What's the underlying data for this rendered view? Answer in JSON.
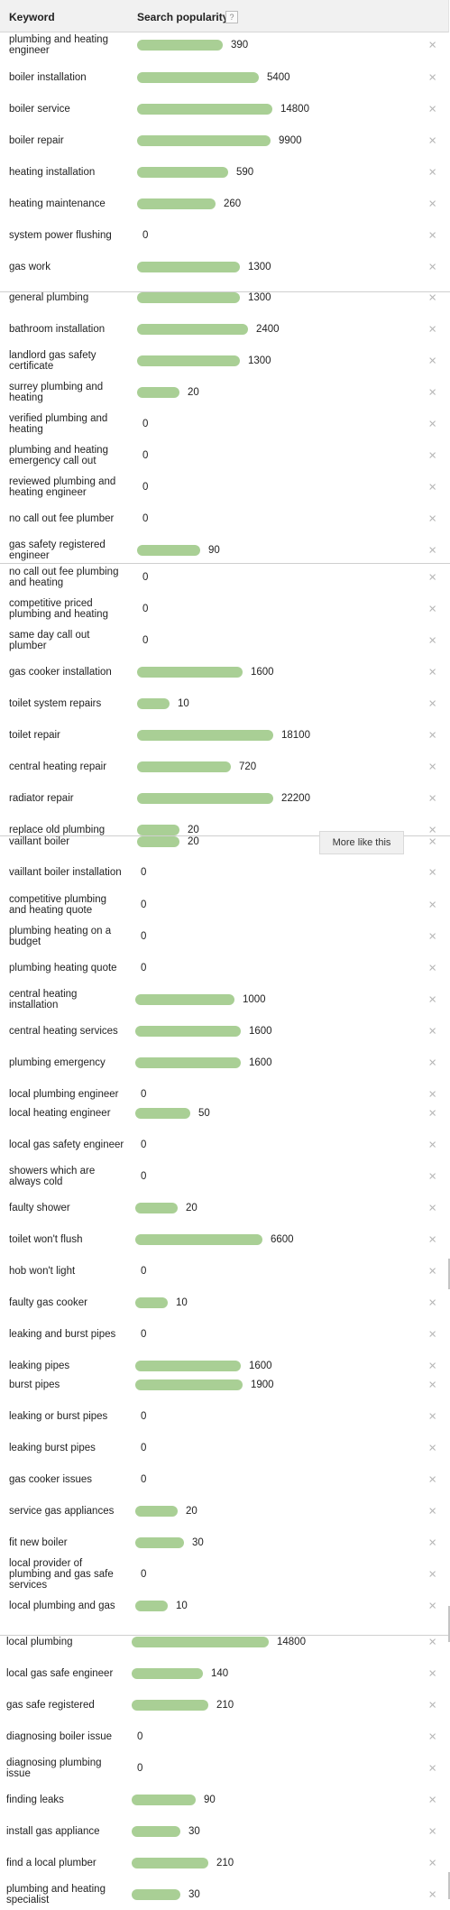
{
  "header": {
    "keyword_label": "Keyword",
    "popularity_label": "Search popularity",
    "help_icon": "?"
  },
  "more_like_this": "More like this",
  "remove_icon": "×",
  "bar_color": "#a9cf95",
  "rows": [
    {
      "kw": "plumbing and heating engineer",
      "value": "390"
    },
    {
      "kw": "boiler installation",
      "value": "5400"
    },
    {
      "kw": "boiler service",
      "value": "14800"
    },
    {
      "kw": "boiler repair",
      "value": "9900"
    },
    {
      "kw": "heating installation",
      "value": "590"
    },
    {
      "kw": "heating maintenance",
      "value": "260"
    },
    {
      "kw": "system power flushing",
      "value": "0"
    },
    {
      "kw": "gas work",
      "value": "1300"
    },
    {
      "kw": "general plumbing",
      "value": "1300"
    },
    {
      "kw": "bathroom installation",
      "value": "2400"
    },
    {
      "kw": "landlord gas safety certificate",
      "value": "1300"
    },
    {
      "kw": "surrey plumbing and heating",
      "value": "20"
    },
    {
      "kw": "verified plumbing and heating",
      "value": "0"
    },
    {
      "kw": "plumbing and heating emergency call out",
      "value": "0"
    },
    {
      "kw": "reviewed plumbing and heating engineer",
      "value": "0"
    },
    {
      "kw": "no call out fee plumber",
      "value": "0"
    },
    {
      "kw": "gas safety registered engineer",
      "value": "90"
    },
    {
      "kw": "no call out fee plumbing and heating",
      "value": "0"
    },
    {
      "kw": "competitive priced plumbing and heating",
      "value": "0"
    },
    {
      "kw": "same day call out plumber",
      "value": "0"
    },
    {
      "kw": "gas cooker installation",
      "value": "1600"
    },
    {
      "kw": "toilet system repairs",
      "value": "10"
    },
    {
      "kw": "toilet repair",
      "value": "18100"
    },
    {
      "kw": "central heating repair",
      "value": "720"
    },
    {
      "kw": "radiator repair",
      "value": "22200"
    },
    {
      "kw": "replace old plumbing",
      "value": "20"
    },
    {
      "kw": "vaillant boiler",
      "value": "20"
    },
    {
      "kw": "vaillant boiler installation",
      "value": "0"
    },
    {
      "kw": "competitive plumbing and heating quote",
      "value": "0"
    },
    {
      "kw": "plumbing heating on a budget",
      "value": "0"
    },
    {
      "kw": "plumbing heating quote",
      "value": "0"
    },
    {
      "kw": "central heating installation",
      "value": "1000"
    },
    {
      "kw": "central heating services",
      "value": "1600"
    },
    {
      "kw": "plumbing emergency",
      "value": "1600"
    },
    {
      "kw": "local plumbing engineer",
      "value": "0"
    },
    {
      "kw": "local heating engineer",
      "value": "50"
    },
    {
      "kw": "local gas safety engineer",
      "value": "0"
    },
    {
      "kw": "showers which are always cold",
      "value": "0"
    },
    {
      "kw": "faulty shower",
      "value": "20"
    },
    {
      "kw": "toilet won't flush",
      "value": "6600"
    },
    {
      "kw": "hob won't light",
      "value": "0"
    },
    {
      "kw": "faulty gas cooker",
      "value": "10"
    },
    {
      "kw": "leaking and burst pipes",
      "value": "0"
    },
    {
      "kw": "leaking pipes",
      "value": "1600"
    },
    {
      "kw": "burst pipes",
      "value": "1900"
    },
    {
      "kw": "leaking or burst pipes",
      "value": "0"
    },
    {
      "kw": "leaking burst pipes",
      "value": "0"
    },
    {
      "kw": "gas cooker issues",
      "value": "0"
    },
    {
      "kw": "service gas appliances",
      "value": "20"
    },
    {
      "kw": "fit new boiler",
      "value": "30"
    },
    {
      "kw": "local provider of plumbing and gas safe services",
      "value": "0"
    },
    {
      "kw": "local plumbing and gas",
      "value": "10"
    },
    {
      "kw": "local plumbing",
      "value": "14800"
    },
    {
      "kw": "local gas safe engineer",
      "value": "140"
    },
    {
      "kw": "gas safe registered",
      "value": "210"
    },
    {
      "kw": "diagnosing boiler issue",
      "value": "0"
    },
    {
      "kw": "diagnosing plumbing issue",
      "value": "0"
    },
    {
      "kw": "finding leaks",
      "value": "90"
    },
    {
      "kw": "install gas appliance",
      "value": "30"
    },
    {
      "kw": "find a local plumber",
      "value": "210"
    },
    {
      "kw": "plumbing and heating specialist",
      "value": "30"
    }
  ]
}
